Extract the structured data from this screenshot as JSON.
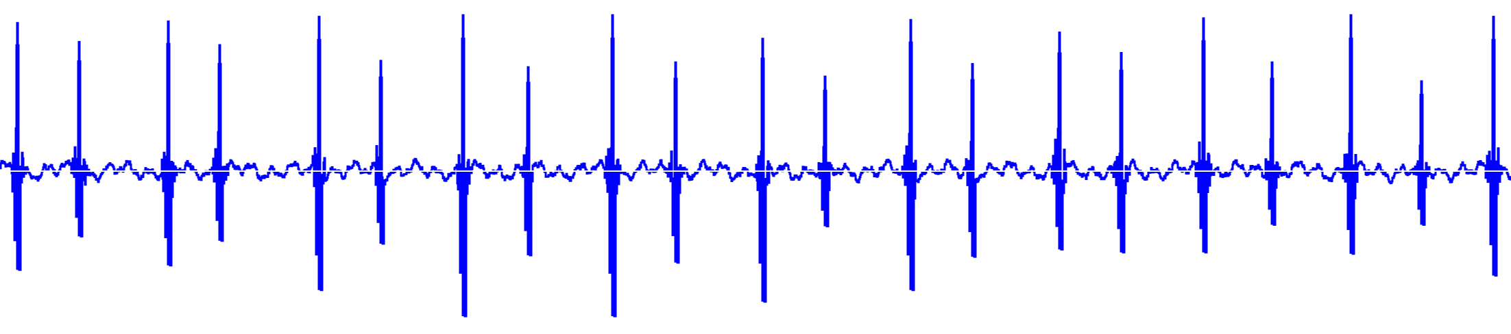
{
  "chart_data": {
    "type": "line",
    "title": "",
    "xlabel": "",
    "ylabel": "",
    "ylim": [
      -1,
      1
    ],
    "grid": false,
    "legend": "none",
    "colors": {
      "wave": "#0000ff",
      "zero_line": "#ffffff",
      "background": "#ffffff"
    },
    "baseline_noise": 0.07,
    "beats": [
      {
        "x": 25,
        "peak": 0.94,
        "trough": 0.68
      },
      {
        "x": 115,
        "peak": 0.82,
        "trough": 0.45
      },
      {
        "x": 245,
        "peak": 0.95,
        "trough": 0.65
      },
      {
        "x": 320,
        "peak": 0.8,
        "trough": 0.48
      },
      {
        "x": 465,
        "peak": 0.98,
        "trough": 0.82
      },
      {
        "x": 555,
        "peak": 0.7,
        "trough": 0.5
      },
      {
        "x": 675,
        "peak": 0.99,
        "trough": 1.0
      },
      {
        "x": 770,
        "peak": 0.66,
        "trough": 0.58
      },
      {
        "x": 893,
        "peak": 0.99,
        "trough": 1.0
      },
      {
        "x": 985,
        "peak": 0.69,
        "trough": 0.63
      },
      {
        "x": 1112,
        "peak": 0.84,
        "trough": 0.9
      },
      {
        "x": 1203,
        "peak": 0.6,
        "trough": 0.38
      },
      {
        "x": 1328,
        "peak": 0.96,
        "trough": 0.82
      },
      {
        "x": 1418,
        "peak": 0.68,
        "trough": 0.59
      },
      {
        "x": 1545,
        "peak": 0.88,
        "trough": 0.54
      },
      {
        "x": 1635,
        "peak": 0.75,
        "trough": 0.56
      },
      {
        "x": 1755,
        "peak": 0.97,
        "trough": 0.56
      },
      {
        "x": 1855,
        "peak": 0.69,
        "trough": 0.37
      },
      {
        "x": 1970,
        "peak": 0.99,
        "trough": 0.57
      },
      {
        "x": 2073,
        "peak": 0.57,
        "trough": 0.37
      },
      {
        "x": 2178,
        "peak": 0.98,
        "trough": 0.72
      }
    ]
  }
}
